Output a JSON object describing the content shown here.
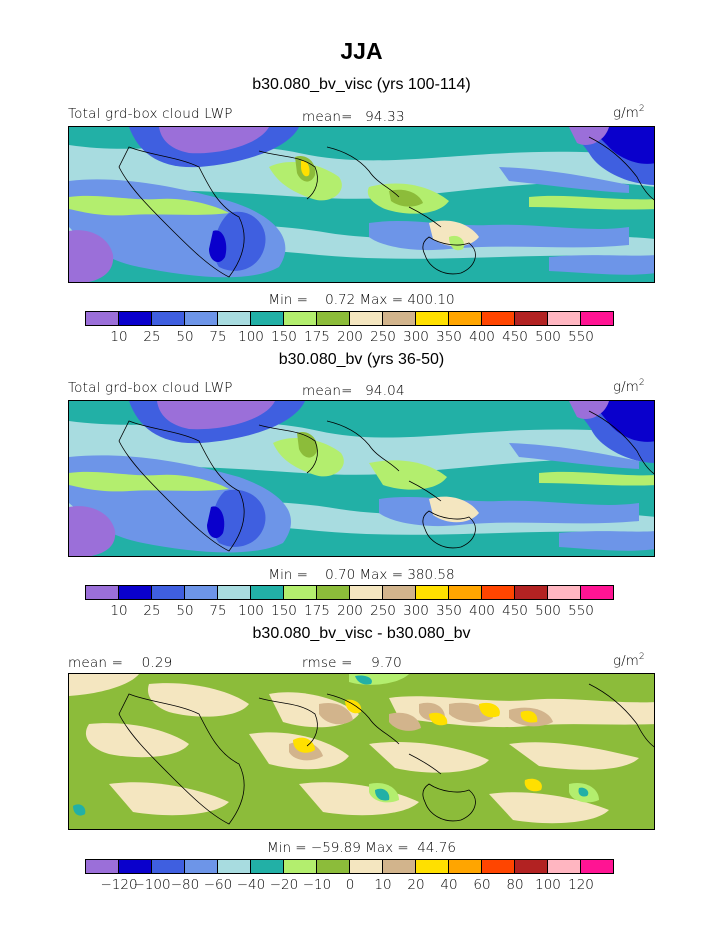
{
  "figure": {
    "season": "JJA"
  },
  "panels": [
    {
      "title": "b30.080_bv_visc (yrs 100-114)",
      "left_label": "Total grd-box cloud LWP",
      "stat_label": "mean=",
      "stat_value": "94.33",
      "units_base": "g/m",
      "units_exp": "2",
      "min_label": "Min =",
      "min_value": "0.72",
      "max_label": "Max =",
      "max_value": "400.10",
      "colorbar_ticks": [
        "10",
        "25",
        "50",
        "75",
        "100",
        "150",
        "175",
        "200",
        "250",
        "300",
        "350",
        "400",
        "450",
        "500",
        "550"
      ]
    },
    {
      "title": "b30.080_bv (yrs 36-50)",
      "left_label": "Total grd-box cloud LWP",
      "stat_label": "mean=",
      "stat_value": "94.04",
      "units_base": "g/m",
      "units_exp": "2",
      "min_label": "Min =",
      "min_value": "0.70",
      "max_label": "Max =",
      "max_value": "380.58",
      "colorbar_ticks": [
        "10",
        "25",
        "50",
        "75",
        "100",
        "150",
        "175",
        "200",
        "250",
        "300",
        "350",
        "400",
        "450",
        "500",
        "550"
      ]
    },
    {
      "title": "b30.080_bv_visc - b30.080_bv",
      "left_label": "mean =",
      "left_value": "0.29",
      "stat_label": "rmse =",
      "stat_value": "9.70",
      "units_base": "g/m",
      "units_exp": "2",
      "min_label": "Min =",
      "min_value": "−59.89",
      "max_label": "Max =",
      "max_value": "44.76",
      "colorbar_ticks": [
        "−120",
        "−100",
        "−80",
        "−60",
        "−40",
        "−20",
        "−10",
        "0",
        "10",
        "20",
        "40",
        "60",
        "80",
        "100",
        "120"
      ]
    }
  ],
  "colors": {
    "palette": [
      "#9b6fd9",
      "#0a00cc",
      "#3f5fe0",
      "#6d95e8",
      "#a8dce0",
      "#22b0a6",
      "#b3ee6e",
      "#8cbc3a",
      "#f4e6c0",
      "#d2b48c",
      "#ffe000",
      "#ffa500",
      "#ff4500",
      "#b22222",
      "#ffb6c1",
      "#ff1493"
    ]
  }
}
